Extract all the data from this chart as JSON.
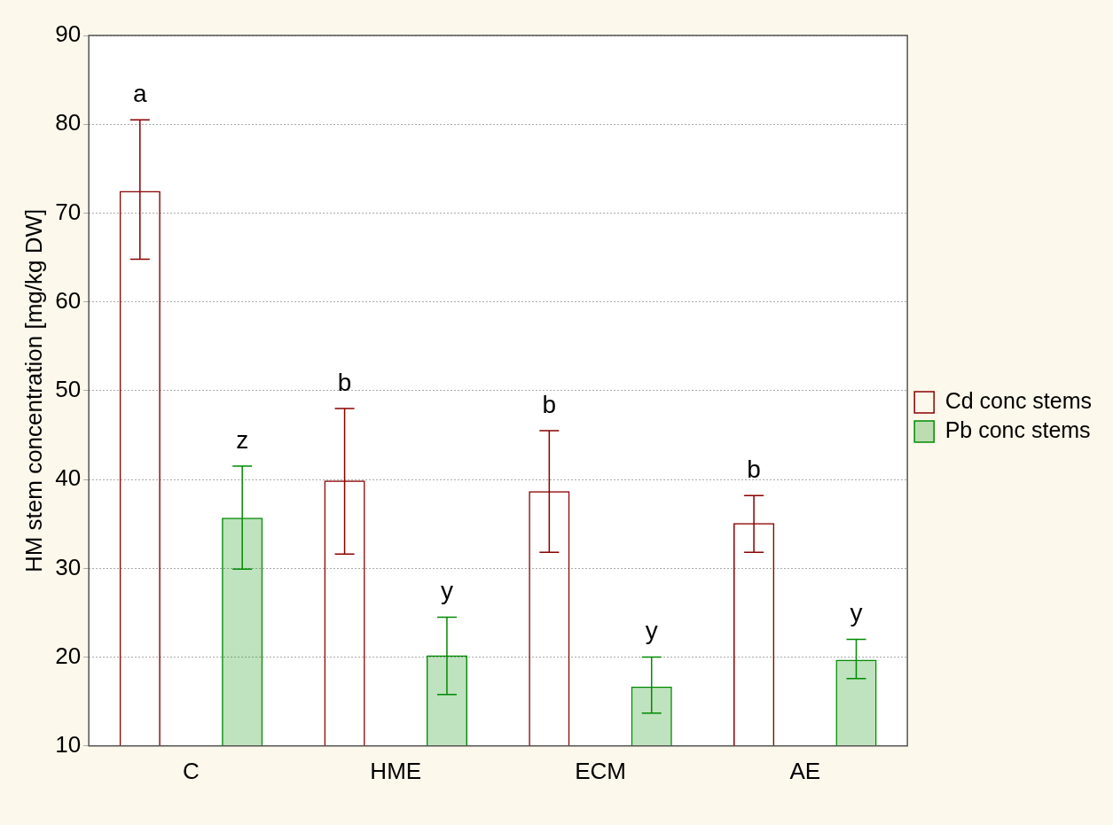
{
  "chart_data": {
    "type": "bar",
    "ylabel": "HM stem concentration [mg/kg DW]",
    "categories": [
      "C",
      "HME",
      "ECM",
      "AE"
    ],
    "series": [
      {
        "name": "Cd conc stems",
        "color": "#8b0000",
        "values": [
          72.5,
          39.9,
          38.7,
          35.1
        ],
        "errors": [
          [
            64.8,
            80.5
          ],
          [
            31.6,
            48.0
          ],
          [
            31.8,
            45.5
          ],
          [
            31.8,
            38.2
          ]
        ]
      },
      {
        "name": "Pb conc stems",
        "color": "#008a00",
        "values": [
          35.7,
          20.2,
          16.7,
          19.7
        ],
        "errors": [
          [
            29.9,
            41.5
          ],
          [
            15.8,
            24.5
          ],
          [
            13.7,
            20.0
          ],
          [
            17.6,
            22.0
          ]
        ]
      }
    ],
    "ylim": [
      10,
      90
    ],
    "yticks": [
      10,
      20,
      30,
      40,
      50,
      60,
      70,
      80,
      90
    ],
    "grid": "y",
    "legend": "right",
    "annotations": [
      "a",
      "z",
      "b",
      "y",
      "b",
      "y",
      "b",
      "y"
    ]
  }
}
